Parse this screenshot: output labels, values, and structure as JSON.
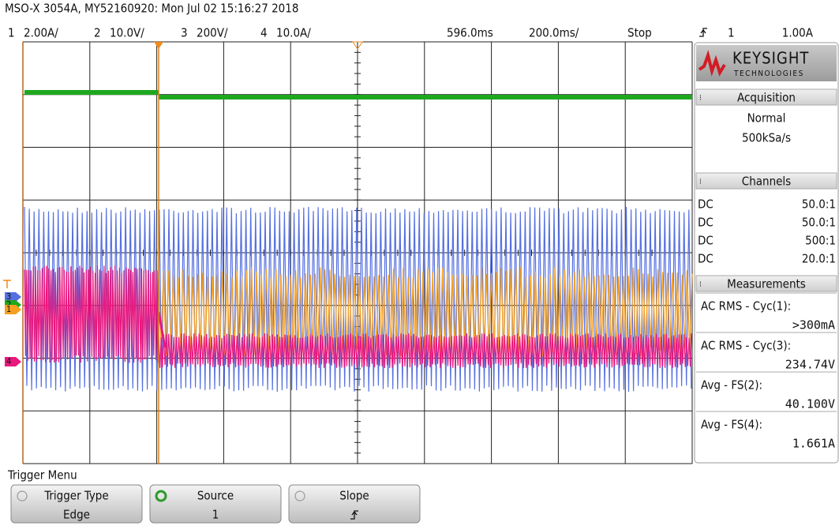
{
  "header": {
    "title": "MSO-X 3054A, MY52160920: Mon Jul 02 15:16:27 2018"
  },
  "status": {
    "channels": [
      {
        "number": "1",
        "scale": "2.00A/",
        "color": "#f5a020"
      },
      {
        "number": "2",
        "scale": "10.0V/",
        "color": "#1fa81f"
      },
      {
        "number": "3",
        "scale": "200V/",
        "color": "#5570e0"
      },
      {
        "number": "4",
        "scale": "10.0A/",
        "color": "#e8187e"
      }
    ],
    "delay": "596.0ms",
    "timebase": "200.0ms/",
    "run_state": "Stop",
    "trigger": {
      "source": "1",
      "level": "1.00A"
    }
  },
  "panel": {
    "brand": "KEYSIGHT",
    "brand_sub": "TECHNOLOGIES",
    "acquisition": {
      "title": "Acquisition",
      "mode": "Normal",
      "rate": "500kSa/s"
    },
    "channels": {
      "title": "Channels",
      "rows": [
        {
          "coupling": "DC",
          "probe": "50.0:1"
        },
        {
          "coupling": "DC",
          "probe": "50.0:1"
        },
        {
          "coupling": "DC",
          "probe": "500:1"
        },
        {
          "coupling": "DC",
          "probe": "20.0:1"
        }
      ]
    },
    "measurements": {
      "title": "Measurements",
      "items": [
        {
          "label": "AC RMS - Cyc(1):",
          "value": ">300mA"
        },
        {
          "label": "AC RMS - Cyc(3):",
          "value": "234.74V"
        },
        {
          "label": "Avg - FS(2):",
          "value": "40.100V"
        },
        {
          "label": "Avg - FS(4):",
          "value": "1.661A"
        }
      ]
    }
  },
  "menu": {
    "title": "Trigger Menu",
    "buttons": [
      {
        "label": "Trigger Type",
        "value": "Edge"
      },
      {
        "label": "Source",
        "value": "1"
      },
      {
        "label": "Slope"
      }
    ]
  }
}
